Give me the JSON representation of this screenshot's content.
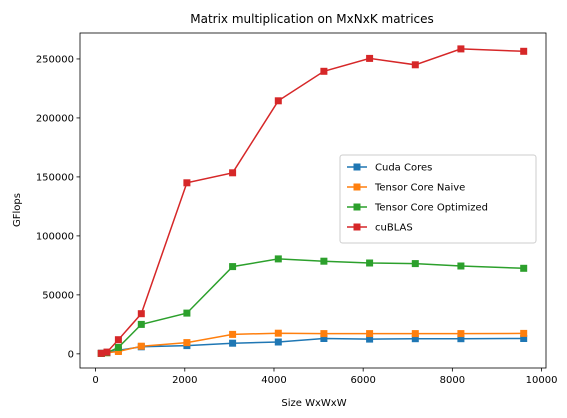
{
  "chart_data": {
    "type": "line",
    "title": "Matrix multiplication on MxNxK matrices",
    "xlabel": "Size WxWxW",
    "ylabel": "GFlops",
    "xlim": [
      -350,
      10100
    ],
    "ylim": [
      -12000,
      272000
    ],
    "xticks": [
      0,
      2000,
      4000,
      6000,
      8000,
      10000
    ],
    "xtick_labels": [
      "0",
      "2000",
      "4000",
      "6000",
      "8000",
      "10000"
    ],
    "yticks": [
      0,
      50000,
      100000,
      150000,
      200000,
      250000
    ],
    "ytick_labels": [
      "0",
      "50000",
      "100000",
      "150000",
      "200000",
      "250000"
    ],
    "grid": false,
    "legend_position": "center-right",
    "x": [
      128,
      256,
      512,
      1024,
      2048,
      3072,
      4096,
      5120,
      6144,
      7168,
      8192,
      9600
    ],
    "series": [
      {
        "name": "Cuda Cores",
        "color": "#1f77b4",
        "marker": "square",
        "values": [
          500,
          1200,
          3000,
          6000,
          7000,
          9000,
          10000,
          13000,
          12500,
          12800,
          12800,
          13000
        ]
      },
      {
        "name": "Tensor Core Naive",
        "color": "#ff7f0e",
        "marker": "square",
        "values": [
          300,
          1000,
          2000,
          6500,
          9500,
          16500,
          17500,
          17200,
          17200,
          17200,
          17200,
          17300
        ]
      },
      {
        "name": "Tensor Core Optimized",
        "color": "#2ca02c",
        "marker": "square",
        "values": [
          400,
          1000,
          5500,
          25000,
          34500,
          74000,
          80500,
          78500,
          77000,
          76500,
          74500,
          72500
        ]
      },
      {
        "name": "cuBLAS",
        "color": "#d62728",
        "marker": "square",
        "values": [
          500,
          1500,
          12000,
          34000,
          145000,
          153500,
          214500,
          239500,
          250500,
          245000,
          258500,
          256500
        ]
      }
    ]
  }
}
